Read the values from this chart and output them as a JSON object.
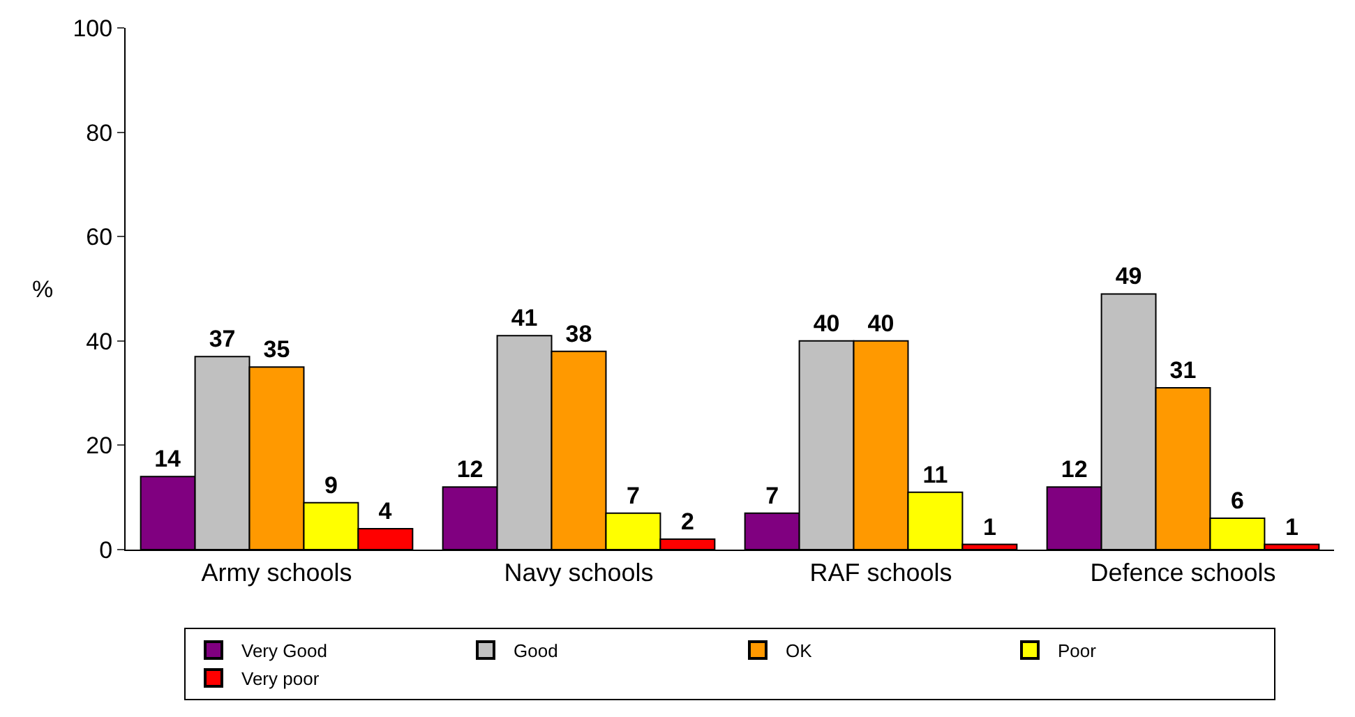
{
  "chart_data": {
    "type": "bar",
    "ylabel": "%",
    "categories": [
      "Army schools",
      "Navy schools",
      "RAF schools",
      "Defence schools"
    ],
    "series": [
      {
        "name": "Very Good",
        "color": "#800080",
        "values": [
          14,
          12,
          7,
          12
        ]
      },
      {
        "name": "Good",
        "color": "#c0c0c0",
        "values": [
          37,
          41,
          40,
          49
        ]
      },
      {
        "name": "OK",
        "color": "#ff9900",
        "values": [
          35,
          38,
          40,
          31
        ]
      },
      {
        "name": "Poor",
        "color": "#ffff00",
        "values": [
          9,
          7,
          11,
          6
        ]
      },
      {
        "name": "Very poor",
        "color": "#ff0000",
        "values": [
          4,
          2,
          1,
          1
        ]
      }
    ],
    "ylim": [
      0,
      100
    ],
    "yticks": [
      0,
      20,
      40,
      60,
      80,
      100
    ],
    "legend": "bottom",
    "data_labels": true
  }
}
